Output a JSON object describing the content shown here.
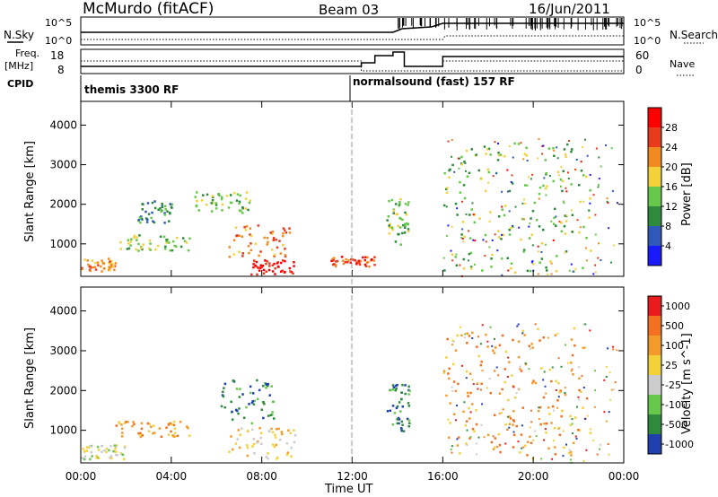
{
  "header": {
    "station": "McMurdo (fitACF)",
    "beam": "Beam 03",
    "date": "16/Jun/2011"
  },
  "top_panels": {
    "nsky_label": "N.Sky",
    "nsearch_label": "N.Search",
    "freq_label_line1": "Freq.",
    "freq_label_line2": "[MHz]",
    "nave_label": "Nave",
    "cpid_label": "CPID",
    "nsky_ticks": [
      "10^5",
      "10^0"
    ],
    "nsearch_ticks": [
      "10^5",
      "10^0"
    ],
    "freq_ticks": [
      "18",
      "8"
    ],
    "nave_ticks": [
      "60",
      "0"
    ],
    "cpid_segments": [
      {
        "label": "themis 3300 RF",
        "start_hour": 0
      },
      {
        "label": "normalsound (fast) 157 RF",
        "start_hour": 12.5
      }
    ]
  },
  "chart_data": [
    {
      "type": "heatmap",
      "title": "",
      "xlabel": "",
      "ylabel": "Slant Range [km]",
      "xlim": [
        0,
        24
      ],
      "ylim": [
        180,
        4600
      ],
      "yticks": [
        "4000",
        "3000",
        "2000",
        "1000"
      ],
      "colorbar": {
        "label": "Power [dB]",
        "ticks": [
          "28",
          "24",
          "20",
          "16",
          "12",
          "8",
          "4"
        ],
        "colors": [
          "#1a1aff",
          "#2f58b8",
          "#2e8a3c",
          "#66c84a",
          "#f2d13a",
          "#f28a22",
          "#e83a1c",
          "#ff0000"
        ]
      },
      "scatter_regions": [
        {
          "x_range": [
            0.0,
            1.5
          ],
          "y_range": [
            300,
            650
          ],
          "level": 5
        },
        {
          "x_range": [
            1.3,
            4.8
          ],
          "y_range": [
            850,
            1250
          ],
          "level": 3
        },
        {
          "x_range": [
            2.5,
            4.0
          ],
          "y_range": [
            1550,
            2150
          ],
          "level": 2
        },
        {
          "x_range": [
            5.0,
            7.5
          ],
          "y_range": [
            1800,
            2350
          ],
          "level": 3
        },
        {
          "x_range": [
            6.5,
            9.2
          ],
          "y_range": [
            700,
            1500
          ],
          "level": 5
        },
        {
          "x_range": [
            7.5,
            9.5
          ],
          "y_range": [
            250,
            650
          ],
          "level": 7
        },
        {
          "x_range": [
            11.0,
            13.0
          ],
          "y_range": [
            450,
            700
          ],
          "level": 6
        },
        {
          "x_range": [
            13.5,
            14.5
          ],
          "y_range": [
            1000,
            2200
          ],
          "level": 3
        },
        {
          "x_range": [
            16.0,
            22.5
          ],
          "y_range": [
            300,
            3600
          ],
          "level": 3
        }
      ]
    },
    {
      "type": "heatmap",
      "title": "",
      "xlabel": "Time UT",
      "ylabel": "Slant Range [km]",
      "xlim": [
        0,
        24
      ],
      "ylim": [
        180,
        4600
      ],
      "xticks": [
        "00:00",
        "04:00",
        "08:00",
        "12:00",
        "16:00",
        "20:00",
        "00:00"
      ],
      "yticks": [
        "4000",
        "3000",
        "2000",
        "1000"
      ],
      "colorbar": {
        "label": "Velocity [m s^-1]",
        "ticks": [
          "1000",
          "500",
          "100",
          "25",
          "-25",
          "-100",
          "-500",
          "-1000"
        ],
        "colors": [
          "#2040b0",
          "#2e8a3c",
          "#66c84a",
          "#cccccc",
          "#f2d13a",
          "#f29a2a",
          "#f27020",
          "#e81c1c"
        ]
      },
      "scatter_regions": [
        {
          "x_range": [
            0.0,
            2.0
          ],
          "y_range": [
            300,
            650
          ],
          "level": 3
        },
        {
          "x_range": [
            1.5,
            4.8
          ],
          "y_range": [
            850,
            1250
          ],
          "level": 5
        },
        {
          "x_range": [
            6.0,
            8.5
          ],
          "y_range": [
            1200,
            2300
          ],
          "level": 1
        },
        {
          "x_range": [
            6.5,
            9.5
          ],
          "y_range": [
            300,
            1100
          ],
          "level": 4
        },
        {
          "x_range": [
            13.5,
            14.5
          ],
          "y_range": [
            1000,
            2200
          ],
          "level": 1
        },
        {
          "x_range": [
            16.0,
            22.5
          ],
          "y_range": [
            300,
            3600
          ],
          "level": 5
        }
      ]
    }
  ]
}
